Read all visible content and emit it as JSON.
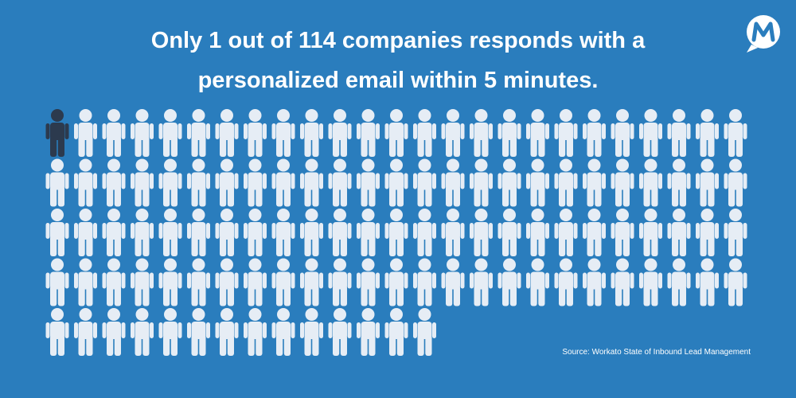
{
  "chart_data": {
    "type": "pictogram",
    "title": "Only 1 out of 114 companies responds with a personalized email within 5 minutes.",
    "total": 114,
    "highlight": 1,
    "color": "#e6edf5",
    "highlight_color": "#2c3a4e",
    "source": "Source: Workato State of Inbound Lead Management"
  }
}
